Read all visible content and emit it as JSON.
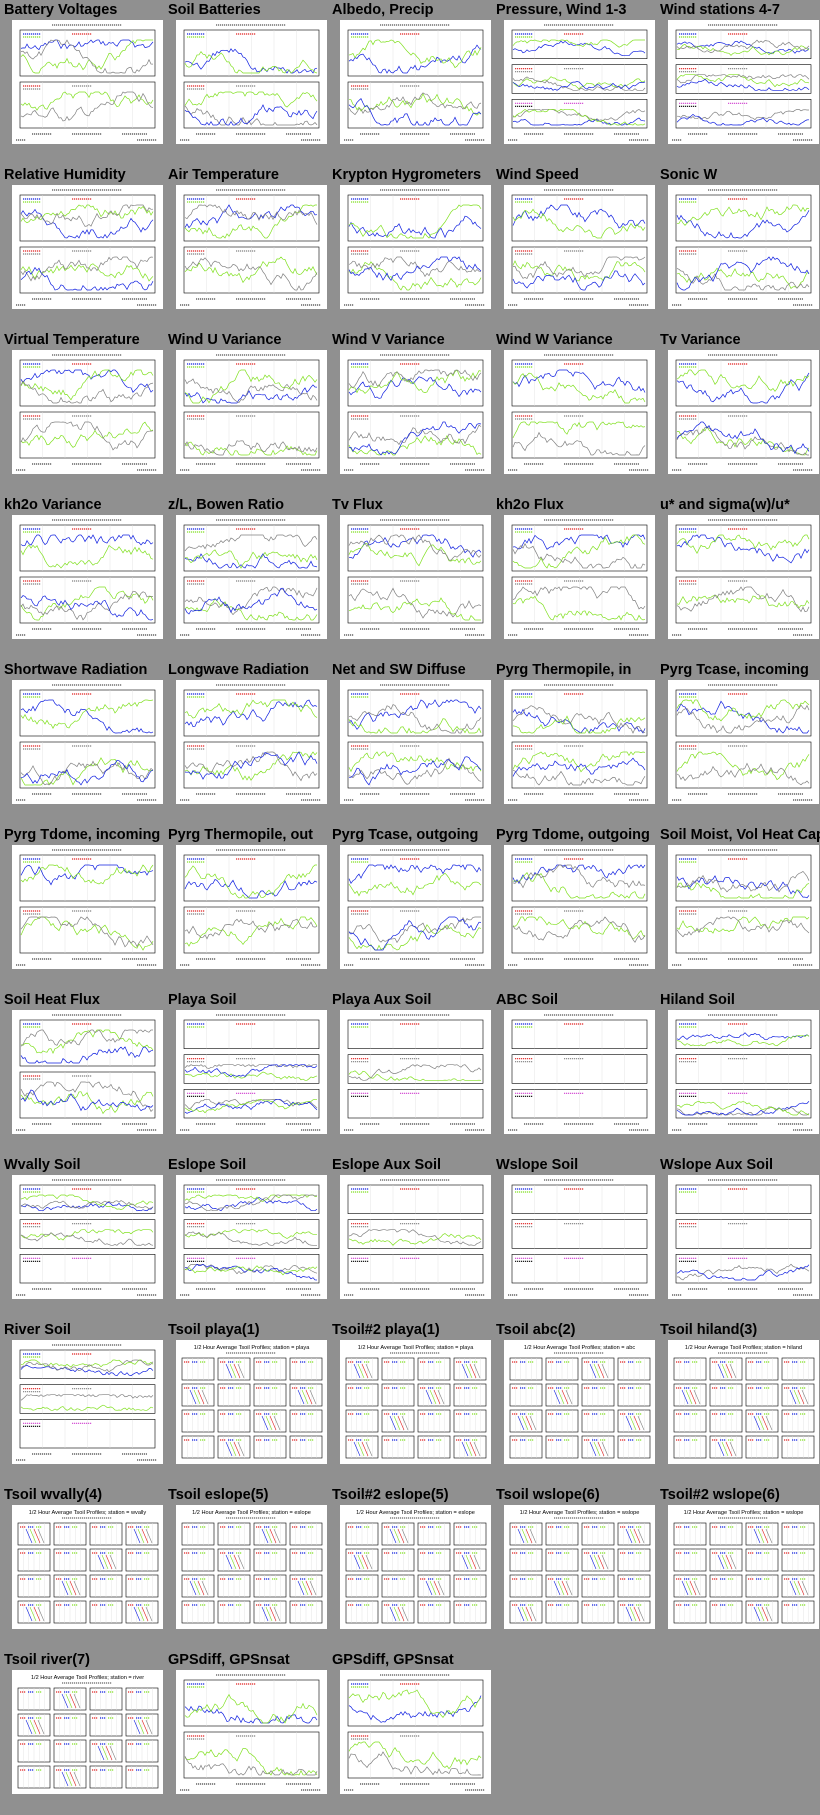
{
  "page": {
    "background": "#909090"
  },
  "palette": {
    "blue": "#1020e0",
    "green": "#80e020",
    "red": "#e02020",
    "gray": "#808080",
    "magenta": "#d040d0",
    "black": "#000000",
    "orange": "#f0a000"
  },
  "thumbnails": [
    {
      "title": "Battery Voltages",
      "kind": "ts"
    },
    {
      "title": "Soil Batteries",
      "kind": "ts"
    },
    {
      "title": "Albedo, Precip",
      "kind": "ts"
    },
    {
      "title": "Pressure, Wind 1-3",
      "kind": "multi"
    },
    {
      "title": "Wind stations 4-7",
      "kind": "multi"
    },
    {
      "title": "Relative Humidity",
      "kind": "ts"
    },
    {
      "title": "Air Temperature",
      "kind": "ts"
    },
    {
      "title": "Krypton Hygrometers",
      "kind": "ts"
    },
    {
      "title": "Wind Speed",
      "kind": "ts"
    },
    {
      "title": "Sonic W",
      "kind": "ts"
    },
    {
      "title": "Virtual Temperature",
      "kind": "ts"
    },
    {
      "title": "Wind U Variance",
      "kind": "ts"
    },
    {
      "title": "Wind V Variance",
      "kind": "ts"
    },
    {
      "title": "Wind W Variance",
      "kind": "ts"
    },
    {
      "title": "Tv Variance",
      "kind": "ts"
    },
    {
      "title": "kh2o Variance",
      "kind": "ts"
    },
    {
      "title": "z/L, Bowen Ratio",
      "kind": "ts"
    },
    {
      "title": "Tv Flux",
      "kind": "ts"
    },
    {
      "title": "kh2o Flux",
      "kind": "ts"
    },
    {
      "title": "u* and sigma(w)/u*",
      "kind": "ts"
    },
    {
      "title": "Shortwave Radiation",
      "kind": "ts"
    },
    {
      "title": "Longwave Radiation",
      "kind": "ts"
    },
    {
      "title": "Net and SW Diffuse",
      "kind": "ts"
    },
    {
      "title": "Pyrg Thermopile, in",
      "kind": "ts"
    },
    {
      "title": "Pyrg Tcase, incoming",
      "kind": "ts"
    },
    {
      "title": "Pyrg Tdome, incoming",
      "kind": "ts"
    },
    {
      "title": "Pyrg Thermopile, out",
      "kind": "ts"
    },
    {
      "title": "Pyrg Tcase, outgoing",
      "kind": "ts"
    },
    {
      "title": "Pyrg Tdome, outgoing",
      "kind": "ts"
    },
    {
      "title": "Soil Moist, Vol Heat Cap",
      "kind": "ts"
    },
    {
      "title": "Soil Heat Flux",
      "kind": "ts"
    },
    {
      "title": "Playa Soil",
      "kind": "soil"
    },
    {
      "title": "Playa Aux Soil",
      "kind": "soil"
    },
    {
      "title": "ABC Soil",
      "kind": "soil"
    },
    {
      "title": "Hiland Soil",
      "kind": "soil"
    },
    {
      "title": "Wvally Soil",
      "kind": "soil"
    },
    {
      "title": "Eslope Soil",
      "kind": "soil"
    },
    {
      "title": "Eslope Aux Soil",
      "kind": "soil"
    },
    {
      "title": "Wslope Soil",
      "kind": "soil"
    },
    {
      "title": "Wslope Aux Soil",
      "kind": "soil"
    },
    {
      "title": "River Soil",
      "kind": "soil"
    },
    {
      "title": "Tsoil playa(1)",
      "kind": "profile",
      "heading": "1/2 Hour Average Tsoil Profiles; station = playa"
    },
    {
      "title": "Tsoil#2 playa(1)",
      "kind": "profile",
      "heading": "1/2 Hour Average Tsoil Profiles; station = playa"
    },
    {
      "title": "Tsoil abc(2)",
      "kind": "profile",
      "heading": "1/2 Hour Average Tsoil Profiles; station = abc"
    },
    {
      "title": "Tsoil hiland(3)",
      "kind": "profile",
      "heading": "1/2 Hour Average Tsoil Profiles; station = hiland"
    },
    {
      "title": "Tsoil wvally(4)",
      "kind": "profile",
      "heading": "1/2 Hour Average Tsoil Profiles; station = wvally"
    },
    {
      "title": "Tsoil eslope(5)",
      "kind": "profile",
      "heading": "1/2 Hour Average Tsoil Profiles; station = eslope"
    },
    {
      "title": "Tsoil#2 eslope(5)",
      "kind": "profile",
      "heading": "1/2 Hour Average Tsoil Profiles; station = eslope"
    },
    {
      "title": "Tsoil wslope(6)",
      "kind": "profile",
      "heading": "1/2 Hour Average Tsoil Profiles; station = wslope"
    },
    {
      "title": "Tsoil#2 wslope(6)",
      "kind": "profile",
      "heading": "1/2 Hour Average Tsoil Profiles; station = wslope"
    },
    {
      "title": "Tsoil river(7)",
      "kind": "profile",
      "heading": "1/2 Hour Average Tsoil Profiles; station = river"
    },
    {
      "title": "GPSdiff, GPSnsat",
      "kind": "gps"
    },
    {
      "title": "GPSdiff, GPSnsat",
      "kind": "gps"
    }
  ]
}
